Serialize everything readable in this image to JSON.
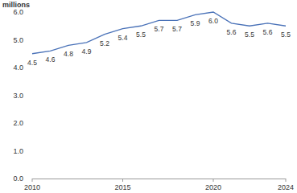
{
  "chart_data": {
    "type": "line",
    "y_label": "millions",
    "x": [
      2010,
      2011,
      2012,
      2013,
      2014,
      2015,
      2016,
      2017,
      2018,
      2019,
      2020,
      2021,
      2022,
      2023,
      2024
    ],
    "values": [
      4.5,
      4.6,
      4.8,
      4.9,
      5.2,
      5.4,
      5.5,
      5.7,
      5.7,
      5.9,
      6.0,
      5.6,
      5.5,
      5.6,
      5.5
    ],
    "value_labels": [
      "4.5",
      "4.6",
      "4.8",
      "4.9",
      "5.2",
      "5.4",
      "5.5",
      "5.7",
      "5.7",
      "5.9",
      "6.0",
      "5.6",
      "5.5",
      "5.6",
      "5.5"
    ],
    "color": "#4a72b8",
    "xlim": [
      2010,
      2024
    ],
    "xticks": [
      2010,
      2015,
      2020,
      2024
    ],
    "ylim": [
      0,
      6
    ],
    "yticks": [
      {
        "value": 0,
        "label": "0.0"
      },
      {
        "value": 1,
        "label": "1.0"
      },
      {
        "value": 2,
        "label": "2.0"
      },
      {
        "value": 3,
        "label": "3.0"
      },
      {
        "value": 4,
        "label": "4.0"
      },
      {
        "value": 5,
        "label": "5.0"
      },
      {
        "value": 6,
        "label": "6.0"
      }
    ],
    "grid": false,
    "data_labels": true
  }
}
